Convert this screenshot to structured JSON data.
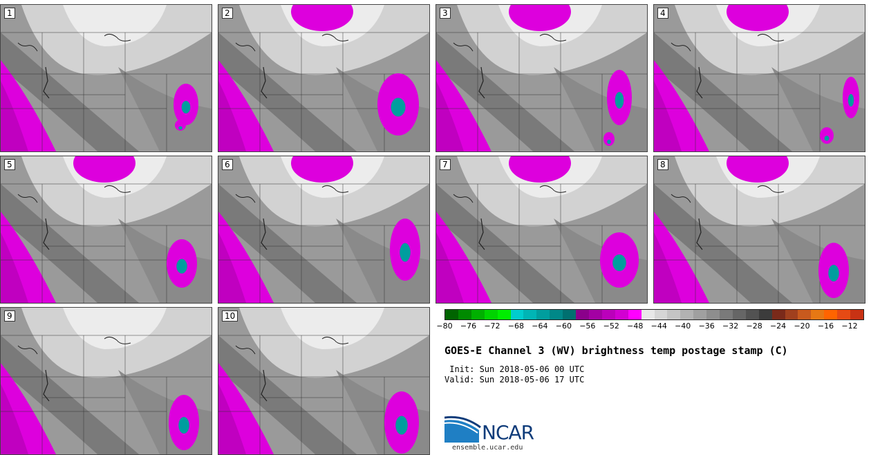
{
  "panels": [
    {
      "label": "1"
    },
    {
      "label": "2"
    },
    {
      "label": "3"
    },
    {
      "label": "4"
    },
    {
      "label": "5"
    },
    {
      "label": "6"
    },
    {
      "label": "7"
    },
    {
      "label": "8"
    },
    {
      "label": "9"
    },
    {
      "label": "10"
    }
  ],
  "colorbar": {
    "colors": [
      "#006400",
      "#008a00",
      "#00b000",
      "#00d400",
      "#00ee00",
      "#00cdcd",
      "#00b5b5",
      "#009e9e",
      "#008888",
      "#007070",
      "#8b008b",
      "#a300a3",
      "#bb00bb",
      "#d200d2",
      "#ff00ff",
      "#e8e8e8",
      "#d6d6d6",
      "#c4c4c4",
      "#b2b2b2",
      "#a0a0a0",
      "#8e8e8e",
      "#7a7a7a",
      "#666666",
      "#525252",
      "#3c3c3c",
      "#7a2a1a",
      "#a0401e",
      "#c85a1e",
      "#e67814",
      "#ff6400",
      "#e64a14",
      "#c83214"
    ],
    "ticks": [
      "−80",
      "−76",
      "−72",
      "−68",
      "−64",
      "−60",
      "−56",
      "−52",
      "−48",
      "−44",
      "−40",
      "−36",
      "−32",
      "−28",
      "−24",
      "−20",
      "−16",
      "−12"
    ]
  },
  "title": "GOES-E Channel 3 (WV) brightness temp postage stamp (C)",
  "init": " Init: Sun 2018-05-06 00 UTC",
  "valid": "Valid: Sun 2018-05-06 17 UTC",
  "logo": {
    "text": "NCAR",
    "url": "ensemble.ucar.edu"
  }
}
